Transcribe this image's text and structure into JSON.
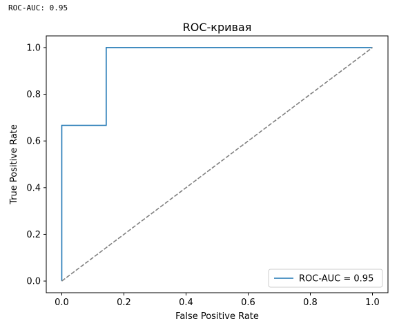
{
  "console": {
    "output_line": "ROC-AUC: 0.95"
  },
  "chart_data": {
    "type": "line",
    "title": "ROC-кривая",
    "xlabel": "False Positive Rate",
    "ylabel": "True Positive Rate",
    "xlim": [
      -0.05,
      1.05
    ],
    "ylim": [
      -0.05,
      1.05
    ],
    "xticks": [
      0.0,
      0.2,
      0.4,
      0.6,
      0.8,
      1.0
    ],
    "yticks": [
      0.0,
      0.2,
      0.4,
      0.6,
      0.8,
      1.0
    ],
    "xtick_labels": [
      "0.0",
      "0.2",
      "0.4",
      "0.6",
      "0.8",
      "1.0"
    ],
    "ytick_labels": [
      "0.0",
      "0.2",
      "0.4",
      "0.6",
      "0.8",
      "1.0"
    ],
    "grid": false,
    "legend_position": "lower-right",
    "series": [
      {
        "name": "ROC-AUC = 0.95",
        "color": "#1f77b4",
        "style": "solid",
        "x": [
          0.0,
          0.0,
          0.143,
          0.143,
          1.0
        ],
        "y": [
          0.0,
          0.667,
          0.667,
          1.0,
          1.0
        ]
      },
      {
        "color": "#808080",
        "style": "dashed",
        "x": [
          0.0,
          1.0
        ],
        "y": [
          0.0,
          1.0
        ]
      }
    ]
  }
}
